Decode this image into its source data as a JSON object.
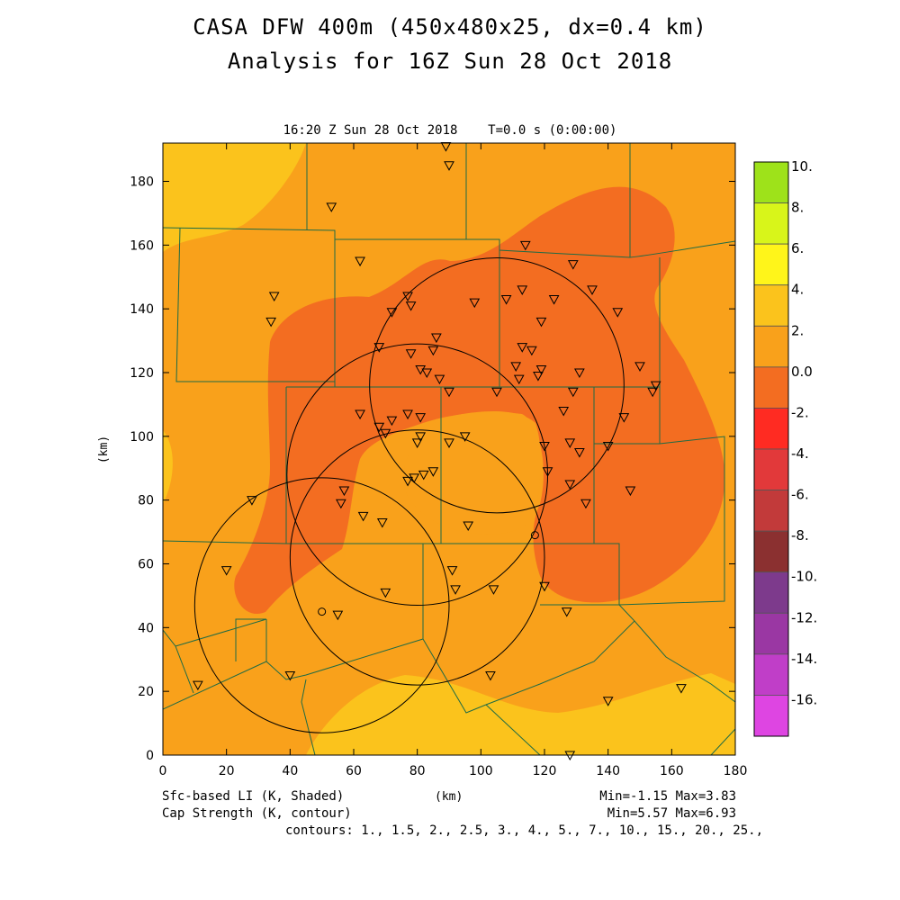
{
  "header": {
    "title_line1": "CASA DFW 400m (450x480x25, dx=0.4 km)",
    "title_line2": "Analysis for 16Z Sun 28 Oct 2018",
    "valid_time": "16:20 Z Sun 28 Oct 2018    T=0.0 s (0:00:00)"
  },
  "axes": {
    "xlabel": "(km)",
    "ylabel": "(km)"
  },
  "footer": {
    "shaded_field": "Sfc-based LI (K, Shaded)",
    "contour_field": "Cap Strength (K, contour)",
    "shaded_minmax": "Min=-1.15 Max=3.83",
    "contour_minmax": "Min=5.57 Max=6.93",
    "contours": "contours: 1., 1.5, 2., 2.5, 3., 4., 5., 7., 10., 15., 20., 25.,"
  },
  "chart_data": {
    "type": "heatmap",
    "title": "CASA DFW 400m (450x480x25, dx=0.4 km)",
    "subtitle": "Analysis for 16Z Sun 28 Oct 2018",
    "xlabel": "(km)",
    "ylabel": "(km)",
    "xlim": [
      0,
      180
    ],
    "ylim": [
      0,
      192
    ],
    "x_ticks": [
      0,
      20,
      40,
      60,
      80,
      100,
      120,
      140,
      160,
      180
    ],
    "y_ticks": [
      0,
      20,
      40,
      60,
      80,
      100,
      120,
      140,
      160,
      180
    ],
    "shaded_min": -1.15,
    "shaded_max": 3.83,
    "contour_min": 5.57,
    "contour_max": 6.93,
    "colorbar": {
      "labels": [
        "10.",
        "8.",
        "6.",
        "4.",
        "2.",
        "0.0",
        "-2.",
        "-4.",
        "-6.",
        "-8.",
        "-10.",
        "-12.",
        "-14.",
        "-16."
      ],
      "colors": [
        "#9ee21a",
        "#d8f51a",
        "#fff51a",
        "#fbc31c",
        "#f9a11b",
        "#f36d21",
        "#ff2b22",
        "#e2393a",
        "#c23a3a",
        "#8b3030",
        "#7d3a8c",
        "#9a37a3",
        "#c03ec8",
        "#de45e2"
      ]
    },
    "region_colors": {
      "positive_2_4": "#fbc31c",
      "positive_0_2": "#f9a11b",
      "negative_0_2": "#f36d21"
    },
    "range_rings": [
      {
        "cx": 105,
        "cy": 116,
        "r": 40
      },
      {
        "cx": 80,
        "cy": 88,
        "r": 41
      },
      {
        "cx": 50,
        "cy": 47,
        "r": 40
      },
      {
        "cx": 80,
        "cy": 62,
        "r": 40
      }
    ],
    "stations_circle": [
      [
        117,
        69
      ],
      [
        50,
        45
      ]
    ],
    "stations_triangle": [
      [
        89,
        191
      ],
      [
        90,
        185
      ],
      [
        53,
        172
      ],
      [
        62,
        155
      ],
      [
        35,
        144
      ],
      [
        34,
        136
      ],
      [
        77,
        144
      ],
      [
        78,
        141
      ],
      [
        72,
        139
      ],
      [
        86,
        131
      ],
      [
        68,
        128
      ],
      [
        78,
        126
      ],
      [
        85,
        127
      ],
      [
        81,
        121
      ],
      [
        83,
        120
      ],
      [
        87,
        118
      ],
      [
        90,
        114
      ],
      [
        98,
        142
      ],
      [
        108,
        143
      ],
      [
        113,
        146
      ],
      [
        114,
        160
      ],
      [
        119,
        136
      ],
      [
        123,
        143
      ],
      [
        129,
        154
      ],
      [
        135,
        146
      ],
      [
        143,
        139
      ],
      [
        113,
        128
      ],
      [
        116,
        127
      ],
      [
        111,
        122
      ],
      [
        112,
        118
      ],
      [
        119,
        121
      ],
      [
        118,
        119
      ],
      [
        131,
        120
      ],
      [
        129,
        114
      ],
      [
        126,
        108
      ],
      [
        105,
        114
      ],
      [
        62,
        107
      ],
      [
        72,
        105
      ],
      [
        77,
        107
      ],
      [
        81,
        106
      ],
      [
        68,
        103
      ],
      [
        70,
        101
      ],
      [
        80,
        98
      ],
      [
        81,
        100
      ],
      [
        90,
        98
      ],
      [
        95,
        100
      ],
      [
        120,
        97
      ],
      [
        128,
        98
      ],
      [
        131,
        95
      ],
      [
        140,
        97
      ],
      [
        145,
        106
      ],
      [
        150,
        122
      ],
      [
        154,
        114
      ],
      [
        155,
        116
      ],
      [
        147,
        83
      ],
      [
        121,
        89
      ],
      [
        128,
        85
      ],
      [
        133,
        79
      ],
      [
        77,
        86
      ],
      [
        79,
        87
      ],
      [
        82,
        88
      ],
      [
        85,
        89
      ],
      [
        57,
        83
      ],
      [
        56,
        79
      ],
      [
        63,
        75
      ],
      [
        69,
        73
      ],
      [
        96,
        72
      ],
      [
        28,
        80
      ],
      [
        20,
        58
      ],
      [
        91,
        58
      ],
      [
        92,
        52
      ],
      [
        104,
        52
      ],
      [
        55,
        44
      ],
      [
        70,
        51
      ],
      [
        120,
        53
      ],
      [
        127,
        45
      ],
      [
        40,
        25
      ],
      [
        103,
        25
      ],
      [
        11,
        22
      ],
      [
        140,
        17
      ],
      [
        163,
        21
      ],
      [
        128,
        0
      ]
    ]
  }
}
